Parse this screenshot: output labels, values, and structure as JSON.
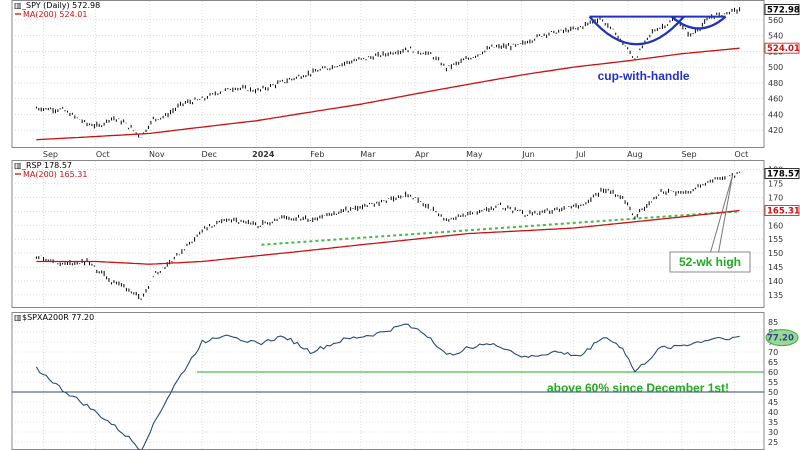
{
  "chart_data": [
    {
      "type": "line",
      "panel": "top",
      "title": "_SPY (Daily) 572.98",
      "series": [
        {
          "name": "_SPY (Daily)",
          "style": "ohlc",
          "color": "#000000",
          "last": "572.98",
          "x": [
            "2023-08-28",
            "2023-09-12",
            "2023-09-26",
            "2023-10-03",
            "2023-10-10",
            "2023-10-17",
            "2023-10-27",
            "2023-11-03",
            "2023-11-10",
            "2023-11-20",
            "2023-12-01",
            "2023-12-10",
            "2023-12-20",
            "2024-01-02",
            "2024-01-12",
            "2024-01-24",
            "2024-02-08",
            "2024-02-22",
            "2024-03-08",
            "2024-03-28",
            "2024-04-10",
            "2024-04-19",
            "2024-05-03",
            "2024-05-15",
            "2024-05-30",
            "2024-06-14",
            "2024-07-02",
            "2024-07-16",
            "2024-07-25",
            "2024-08-05",
            "2024-08-15",
            "2024-08-28",
            "2024-09-06",
            "2024-09-18",
            "2024-10-04"
          ],
          "y": [
            448,
            446,
            428,
            425,
            436,
            430,
            412,
            434,
            438,
            454,
            459,
            468,
            474,
            470,
            478,
            487,
            497,
            506,
            513,
            523,
            516,
            499,
            512,
            525,
            527,
            542,
            548,
            562,
            543,
            510,
            545,
            560,
            540,
            564,
            573
          ]
        },
        {
          "name": "MA(200)",
          "color": "#cc1111",
          "last": "524.01",
          "x": [
            "2023-08-28",
            "2023-10-01",
            "2023-11-01",
            "2023-12-01",
            "2024-01-01",
            "2024-02-01",
            "2024-03-01",
            "2024-04-01",
            "2024-05-01",
            "2024-06-01",
            "2024-07-01",
            "2024-08-01",
            "2024-09-01",
            "2024-10-04"
          ],
          "y": [
            408,
            412,
            416,
            424,
            432,
            443,
            453,
            466,
            478,
            490,
            500,
            508,
            517,
            524
          ]
        }
      ],
      "ylim": [
        400,
        580
      ],
      "yticks": [
        420,
        440,
        460,
        480,
        500,
        520,
        540,
        560
      ],
      "annotation": "cup-with-handle"
    },
    {
      "type": "line",
      "panel": "middle",
      "title": "_RSP 178.57",
      "series": [
        {
          "name": "_RSP",
          "style": "ohlc",
          "color": "#000000",
          "last": "178.57",
          "x": [
            "2023-08-28",
            "2023-09-12",
            "2023-09-26",
            "2023-10-10",
            "2023-10-20",
            "2023-10-27",
            "2023-11-03",
            "2023-11-15",
            "2023-12-01",
            "2023-12-15",
            "2024-01-02",
            "2024-01-17",
            "2024-02-01",
            "2024-02-20",
            "2024-03-10",
            "2024-03-28",
            "2024-04-10",
            "2024-04-19",
            "2024-05-08",
            "2024-05-20",
            "2024-06-03",
            "2024-06-20",
            "2024-07-05",
            "2024-07-18",
            "2024-07-29",
            "2024-08-05",
            "2024-08-20",
            "2024-09-06",
            "2024-09-20",
            "2024-10-04"
          ],
          "y": [
            149,
            146,
            147,
            140,
            137,
            133,
            142,
            148,
            158,
            162,
            160,
            163,
            162,
            165,
            168,
            171,
            166,
            162,
            165,
            167,
            164,
            165,
            167,
            173,
            170,
            163,
            172,
            172,
            177,
            178.6
          ]
        },
        {
          "name": "MA(200)",
          "color": "#cc1111",
          "last": "165.31",
          "x": [
            "2023-08-28",
            "2023-10-01",
            "2023-11-01",
            "2023-12-01",
            "2024-01-01",
            "2024-02-01",
            "2024-03-01",
            "2024-04-01",
            "2024-05-01",
            "2024-06-01",
            "2024-07-01",
            "2024-08-01",
            "2024-09-01",
            "2024-10-04"
          ],
          "y": [
            147,
            147,
            146,
            147,
            149,
            151,
            153,
            155,
            157,
            158,
            159,
            161,
            163,
            165.3
          ]
        }
      ],
      "trendline": {
        "x": [
          "2024-01-04",
          "2024-10-04"
        ],
        "y": [
          153,
          165
        ],
        "color": "#44bb44",
        "style": "dotted"
      },
      "ylim": [
        131,
        182
      ],
      "yticks": [
        135,
        140,
        145,
        150,
        155,
        160,
        165,
        170,
        175,
        180
      ],
      "annotation": "52-wk high"
    },
    {
      "type": "line",
      "panel": "bottom",
      "title": "$SPXA200R 77.20",
      "series": [
        {
          "name": "$SPXA200R",
          "color": "#2a4a7a",
          "last": "77.20",
          "x": [
            "2023-08-28",
            "2023-09-12",
            "2023-09-26",
            "2023-10-10",
            "2023-10-20",
            "2023-10-27",
            "2023-11-03",
            "2023-11-15",
            "2023-12-01",
            "2023-12-15",
            "2024-01-02",
            "2024-01-17",
            "2024-02-01",
            "2024-02-20",
            "2024-03-10",
            "2024-03-28",
            "2024-04-10",
            "2024-04-19",
            "2024-05-08",
            "2024-05-20",
            "2024-06-03",
            "2024-06-20",
            "2024-07-05",
            "2024-07-18",
            "2024-07-29",
            "2024-08-05",
            "2024-08-20",
            "2024-09-06",
            "2024-09-20",
            "2024-10-04"
          ],
          "y": [
            62,
            51,
            43,
            34,
            27,
            21,
            34,
            53,
            75,
            79,
            74,
            78,
            70,
            76,
            79,
            84,
            77,
            68,
            74,
            73,
            67,
            70,
            68,
            78,
            72,
            60,
            72,
            74,
            77,
            77.2
          ]
        }
      ],
      "hlines": [
        {
          "y": 60,
          "color": "#22aa22"
        },
        {
          "y": 50,
          "color": "#2a4a7a"
        }
      ],
      "ylim": [
        22,
        88
      ],
      "yticks": [
        25,
        30,
        35,
        40,
        45,
        50,
        55,
        60,
        65,
        70,
        75,
        80,
        85
      ],
      "annotation": "above 60% since December 1st!"
    }
  ],
  "x_axis": {
    "ticks": [
      {
        "date": "2023-09-01",
        "label": "Sep"
      },
      {
        "date": "2023-10-01",
        "label": "Oct"
      },
      {
        "date": "2023-11-01",
        "label": "Nov"
      },
      {
        "date": "2023-12-01",
        "label": "Dec"
      },
      {
        "date": "2024-01-01",
        "label": "2024"
      },
      {
        "date": "2024-02-01",
        "label": "Feb"
      },
      {
        "date": "2024-03-01",
        "label": "Mar"
      },
      {
        "date": "2024-04-01",
        "label": "Apr"
      },
      {
        "date": "2024-05-01",
        "label": "May"
      },
      {
        "date": "2024-06-01",
        "label": "Jun"
      },
      {
        "date": "2024-07-01",
        "label": "Jul"
      },
      {
        "date": "2024-08-01",
        "label": "Aug"
      },
      {
        "date": "2024-09-01",
        "label": "Sep"
      },
      {
        "date": "2024-10-01",
        "label": "Oct"
      }
    ],
    "range": [
      "2023-08-14",
      "2024-10-18"
    ]
  },
  "colors": {
    "grid": "#c8c8c8",
    "price": "#000000",
    "ma": "#cc1111",
    "cup": "#2233bb",
    "green": "#22aa22",
    "breadth": "#2a4a7a"
  }
}
